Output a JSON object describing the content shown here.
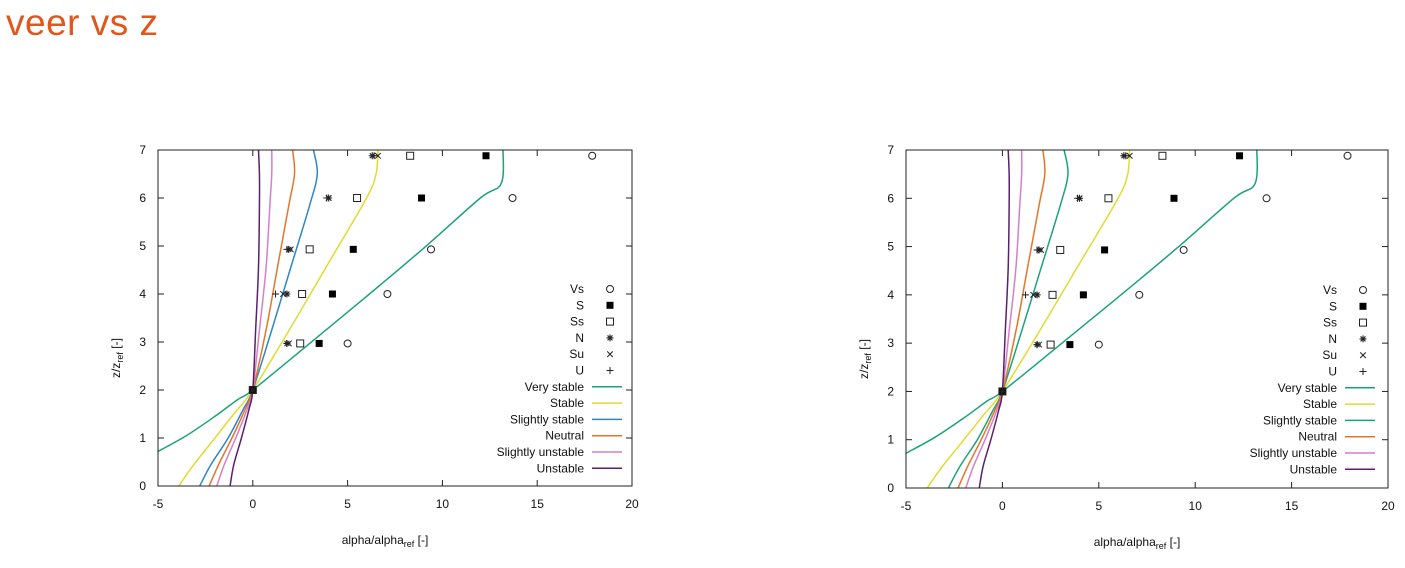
{
  "slide": {
    "title": "veer vs z"
  },
  "chart_data": [
    {
      "type": "scatter",
      "xlim": [
        -5,
        20
      ],
      "ylim": [
        0,
        7
      ],
      "xticks": [
        "-5",
        "0",
        "5",
        "10",
        "15",
        "20"
      ],
      "yticks": [
        "0",
        "1",
        "2",
        "3",
        "4",
        "5",
        "6",
        "7"
      ],
      "xlabel": {
        "main": "alpha/alpha",
        "sub": "ref",
        "unit": " [-]"
      },
      "ylabel": {
        "main": "z/z",
        "sub": "ref",
        "unit": " [-]"
      },
      "grid": false,
      "legend_position": "right",
      "point_series": [
        {
          "name": "Vs",
          "marker": "circle-open",
          "points": [
            [
              0,
              2
            ],
            [
              5.0,
              2.97
            ],
            [
              7.1,
              4.0
            ],
            [
              9.4,
              4.93
            ],
            [
              13.7,
              6.0
            ],
            [
              17.9,
              6.88
            ]
          ]
        },
        {
          "name": "S",
          "marker": "square-filled",
          "points": [
            [
              0,
              2
            ],
            [
              3.5,
              2.97
            ],
            [
              4.2,
              4.0
            ],
            [
              5.3,
              4.93
            ],
            [
              8.9,
              6.0
            ],
            [
              12.3,
              6.88
            ]
          ]
        },
        {
          "name": "Ss",
          "marker": "square-open",
          "points": [
            [
              0,
              2
            ],
            [
              2.5,
              2.97
            ],
            [
              2.6,
              4.0
            ],
            [
              3.0,
              4.93
            ],
            [
              5.5,
              6.0
            ],
            [
              8.3,
              6.88
            ]
          ]
        },
        {
          "name": "N",
          "marker": "asterisk",
          "points": [
            [
              0,
              2
            ],
            [
              1.8,
              2.97
            ],
            [
              1.8,
              4.0
            ],
            [
              1.9,
              4.93
            ],
            [
              4.0,
              6.0
            ],
            [
              6.3,
              6.88
            ]
          ]
        },
        {
          "name": "Su",
          "marker": "cross",
          "points": [
            [
              0,
              2
            ],
            [
              1.9,
              2.97
            ],
            [
              1.6,
              4.0
            ],
            [
              2.0,
              4.93
            ],
            [
              4.0,
              6.0
            ],
            [
              6.6,
              6.88
            ]
          ]
        },
        {
          "name": "U",
          "marker": "plus",
          "points": [
            [
              0,
              2
            ],
            [
              1.8,
              2.97
            ],
            [
              1.2,
              4.0
            ],
            [
              1.8,
              4.93
            ],
            [
              3.9,
              6.0
            ],
            [
              6.4,
              6.88
            ]
          ]
        }
      ],
      "line_series": [
        {
          "name": "Very stable",
          "color": "#1aa37a",
          "points": [
            [
              -5,
              0.72
            ],
            [
              -3.5,
              1.05
            ],
            [
              -2,
              1.45
            ],
            [
              -0.8,
              1.8
            ],
            [
              0,
              2
            ],
            [
              3,
              2.97
            ],
            [
              6,
              3.95
            ],
            [
              9,
              4.95
            ],
            [
              12,
              6.0
            ],
            [
              13.1,
              6.3
            ],
            [
              13.2,
              7
            ]
          ]
        },
        {
          "name": "Stable",
          "color": "#e3da30",
          "points": [
            [
              -3.9,
              0.0
            ],
            [
              -3.2,
              0.4
            ],
            [
              -2.2,
              0.9
            ],
            [
              -1.0,
              1.5
            ],
            [
              0,
              2
            ],
            [
              2,
              3.3
            ],
            [
              4,
              4.65
            ],
            [
              6,
              6.0
            ],
            [
              6.5,
              6.5
            ],
            [
              6.6,
              7
            ]
          ]
        },
        {
          "name": "Slightly stable",
          "color": "#2d86c8",
          "points": [
            [
              -2.8,
              0.0
            ],
            [
              -2.2,
              0.45
            ],
            [
              -1.3,
              1.0
            ],
            [
              -0.5,
              1.6
            ],
            [
              0,
              2
            ],
            [
              1,
              3.25
            ],
            [
              2,
              4.55
            ],
            [
              3,
              5.85
            ],
            [
              3.4,
              6.5
            ],
            [
              3.2,
              7
            ]
          ]
        },
        {
          "name": "Neutral",
          "color": "#e57528",
          "points": [
            [
              -2.3,
              0.0
            ],
            [
              -1.8,
              0.45
            ],
            [
              -1.1,
              1.0
            ],
            [
              -0.4,
              1.6
            ],
            [
              0,
              2
            ],
            [
              0.7,
              3.25
            ],
            [
              1.3,
              4.55
            ],
            [
              1.9,
              5.85
            ],
            [
              2.2,
              6.5
            ],
            [
              2.1,
              7
            ]
          ]
        },
        {
          "name": "Slightly unstable",
          "color": "#d77ec8",
          "points": [
            [
              -1.9,
              0.0
            ],
            [
              -1.5,
              0.45
            ],
            [
              -0.9,
              1.0
            ],
            [
              -0.3,
              1.6
            ],
            [
              0,
              2
            ],
            [
              0.35,
              3.25
            ],
            [
              0.7,
              4.55
            ],
            [
              0.9,
              5.85
            ],
            [
              1.0,
              6.5
            ],
            [
              1.0,
              7
            ]
          ]
        },
        {
          "name": "Unstable",
          "color": "#5a1f6e",
          "points": [
            [
              -1.2,
              0.0
            ],
            [
              -1.0,
              0.45
            ],
            [
              -0.6,
              1.0
            ],
            [
              -0.2,
              1.6
            ],
            [
              0,
              2
            ],
            [
              0.15,
              3.25
            ],
            [
              0.3,
              4.55
            ],
            [
              0.35,
              5.85
            ],
            [
              0.35,
              6.5
            ],
            [
              0.3,
              7
            ]
          ]
        }
      ]
    },
    {
      "type": "scatter",
      "xlim": [
        -5,
        20
      ],
      "ylim": [
        0,
        7
      ],
      "xticks": [
        "-5",
        "0",
        "5",
        "10",
        "15",
        "20"
      ],
      "yticks": [
        "0",
        "1",
        "2",
        "3",
        "4",
        "5",
        "6",
        "7"
      ],
      "xlabel": {
        "main": "alpha/alpha",
        "sub": "ref",
        "unit": " [-]"
      },
      "ylabel": {
        "main": "z/z",
        "sub": "ref",
        "unit": " [-]"
      },
      "grid": false,
      "legend_position": "right",
      "point_series": [
        {
          "name": "Vs",
          "marker": "circle-open",
          "points": [
            [
              0,
              2
            ],
            [
              5.0,
              2.97
            ],
            [
              7.1,
              4.0
            ],
            [
              9.4,
              4.93
            ],
            [
              13.7,
              6.0
            ],
            [
              17.9,
              6.88
            ]
          ]
        },
        {
          "name": "S",
          "marker": "square-filled",
          "points": [
            [
              0,
              2
            ],
            [
              3.5,
              2.97
            ],
            [
              4.2,
              4.0
            ],
            [
              5.3,
              4.93
            ],
            [
              8.9,
              6.0
            ],
            [
              12.3,
              6.88
            ]
          ]
        },
        {
          "name": "Ss",
          "marker": "square-open",
          "points": [
            [
              0,
              2
            ],
            [
              2.5,
              2.97
            ],
            [
              2.6,
              4.0
            ],
            [
              3.0,
              4.93
            ],
            [
              5.5,
              6.0
            ],
            [
              8.3,
              6.88
            ]
          ]
        },
        {
          "name": "N",
          "marker": "asterisk",
          "points": [
            [
              0,
              2
            ],
            [
              1.8,
              2.97
            ],
            [
              1.8,
              4.0
            ],
            [
              1.9,
              4.93
            ],
            [
              4.0,
              6.0
            ],
            [
              6.3,
              6.88
            ]
          ]
        },
        {
          "name": "Su",
          "marker": "cross",
          "points": [
            [
              0,
              2
            ],
            [
              1.9,
              2.97
            ],
            [
              1.6,
              4.0
            ],
            [
              2.0,
              4.93
            ],
            [
              4.0,
              6.0
            ],
            [
              6.6,
              6.88
            ]
          ]
        },
        {
          "name": "U",
          "marker": "plus",
          "points": [
            [
              0,
              2
            ],
            [
              1.8,
              2.97
            ],
            [
              1.2,
              4.0
            ],
            [
              1.8,
              4.93
            ],
            [
              3.9,
              6.0
            ],
            [
              6.4,
              6.88
            ]
          ]
        }
      ],
      "line_series": [
        {
          "name": "Very stable",
          "color": "#1aa37a",
          "points": [
            [
              -5,
              0.72
            ],
            [
              -3.5,
              1.05
            ],
            [
              -2,
              1.45
            ],
            [
              -0.8,
              1.8
            ],
            [
              0,
              2
            ],
            [
              3,
              2.97
            ],
            [
              6,
              3.95
            ],
            [
              9,
              4.95
            ],
            [
              12,
              6.0
            ],
            [
              13.1,
              6.3
            ],
            [
              13.2,
              7
            ]
          ]
        },
        {
          "name": "Stable",
          "color": "#e3da30",
          "points": [
            [
              -3.9,
              0.0
            ],
            [
              -3.2,
              0.4
            ],
            [
              -2.2,
              0.9
            ],
            [
              -1.0,
              1.5
            ],
            [
              0,
              2
            ],
            [
              2,
              3.3
            ],
            [
              4,
              4.65
            ],
            [
              6,
              6.0
            ],
            [
              6.5,
              6.5
            ],
            [
              6.6,
              7
            ]
          ]
        },
        {
          "name": "Slightly stable",
          "color": "#1aa37a",
          "points": [
            [
              -2.8,
              0.0
            ],
            [
              -2.2,
              0.45
            ],
            [
              -1.3,
              1.0
            ],
            [
              -0.5,
              1.6
            ],
            [
              0,
              2
            ],
            [
              1,
              3.25
            ],
            [
              2,
              4.55
            ],
            [
              3,
              5.85
            ],
            [
              3.4,
              6.5
            ],
            [
              3.2,
              7
            ]
          ]
        },
        {
          "name": "Neutral",
          "color": "#e57528",
          "points": [
            [
              -2.3,
              0.0
            ],
            [
              -1.8,
              0.45
            ],
            [
              -1.1,
              1.0
            ],
            [
              -0.4,
              1.6
            ],
            [
              0,
              2
            ],
            [
              0.7,
              3.25
            ],
            [
              1.3,
              4.55
            ],
            [
              1.9,
              5.85
            ],
            [
              2.2,
              6.5
            ],
            [
              2.1,
              7
            ]
          ]
        },
        {
          "name": "Slightly unstable",
          "color": "#d77ec8",
          "points": [
            [
              -1.9,
              0.0
            ],
            [
              -1.5,
              0.45
            ],
            [
              -0.9,
              1.0
            ],
            [
              -0.3,
              1.6
            ],
            [
              0,
              2
            ],
            [
              0.35,
              3.25
            ],
            [
              0.7,
              4.55
            ],
            [
              0.9,
              5.85
            ],
            [
              1.0,
              6.5
            ],
            [
              1.0,
              7
            ]
          ]
        },
        {
          "name": "Unstable",
          "color": "#5a1f6e",
          "points": [
            [
              -1.2,
              0.0
            ],
            [
              -1.0,
              0.45
            ],
            [
              -0.6,
              1.0
            ],
            [
              -0.2,
              1.6
            ],
            [
              0,
              2
            ],
            [
              0.15,
              3.25
            ],
            [
              0.3,
              4.55
            ],
            [
              0.35,
              5.85
            ],
            [
              0.35,
              6.5
            ],
            [
              0.3,
              7
            ]
          ]
        }
      ]
    }
  ]
}
